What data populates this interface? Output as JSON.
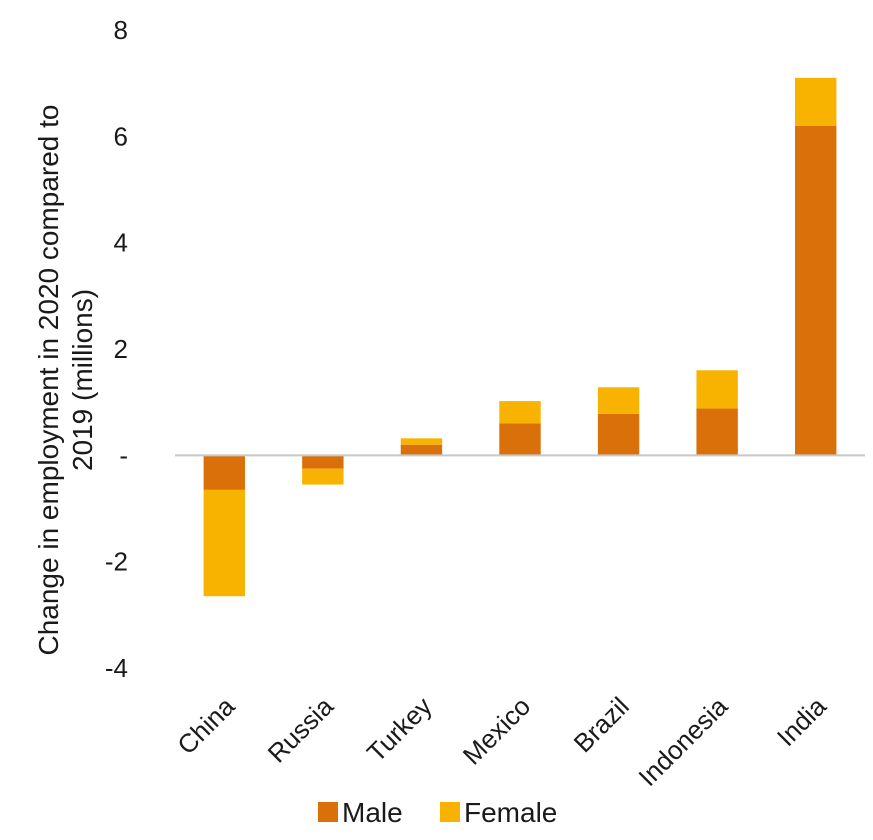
{
  "chart_data": {
    "type": "bar",
    "stacked": true,
    "categories": [
      "China",
      "Russia",
      "Turkey",
      "Mexico",
      "Brazil",
      "Indonesia",
      "India"
    ],
    "series": [
      {
        "name": "Male",
        "color": "#D9700A",
        "values": [
          -0.65,
          -0.25,
          0.2,
          0.6,
          0.78,
          0.88,
          6.2
        ]
      },
      {
        "name": "Female",
        "color": "#F8B300",
        "values": [
          -2.0,
          -0.3,
          0.12,
          0.42,
          0.5,
          0.72,
          0.9
        ]
      }
    ],
    "ylabel": "Change in employment in 2020 compared to 2019 (millions)",
    "ylabel_lines": [
      "Change in employment in 2020 compared to",
      "2019 (millions)"
    ],
    "ylim": [
      -4,
      8
    ],
    "yticks": [
      -4,
      -2,
      0,
      2,
      4,
      6,
      8
    ],
    "ytick_labels": [
      "-4",
      "-2",
      "-",
      "2",
      "4",
      "6",
      "8"
    ],
    "grid": false,
    "legend": "bottom-center"
  }
}
